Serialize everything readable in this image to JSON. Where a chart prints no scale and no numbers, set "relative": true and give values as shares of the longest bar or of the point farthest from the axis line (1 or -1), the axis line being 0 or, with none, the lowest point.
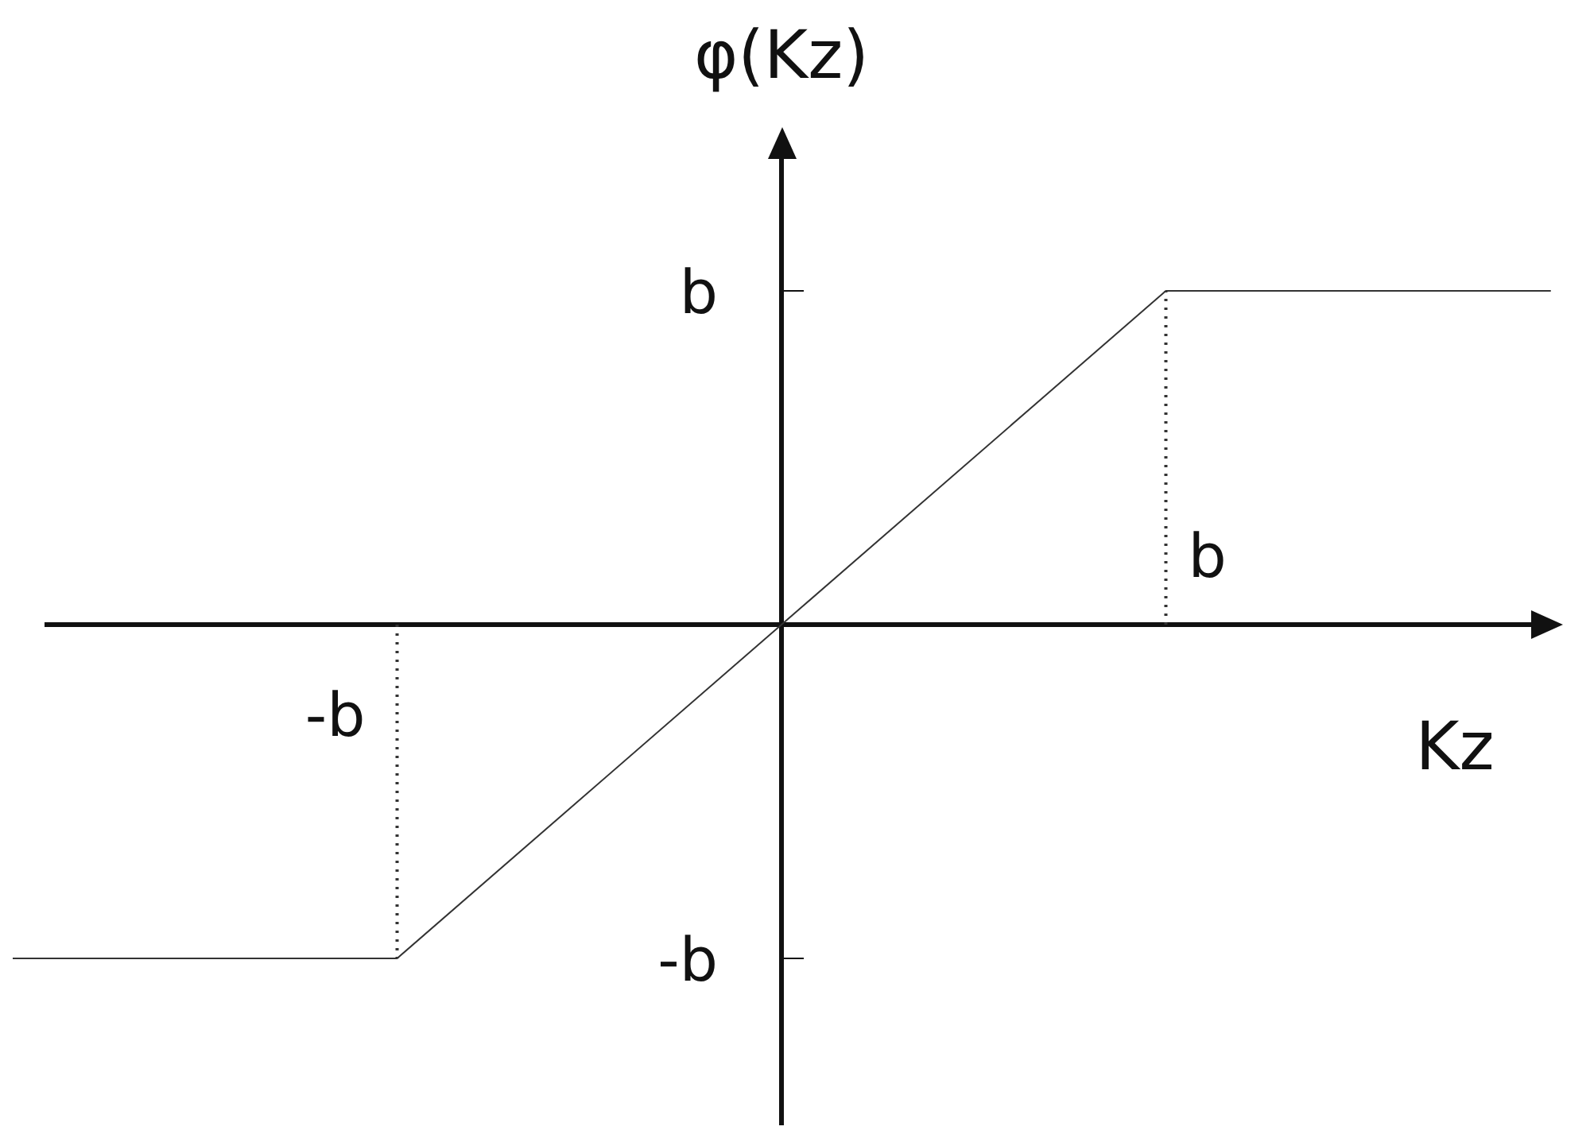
{
  "chart_data": {
    "type": "line",
    "xlabel": "Kz",
    "ylabel": "φ(Kz)",
    "relative": true,
    "categories": [
      null,
      null,
      null,
      null,
      null
    ],
    "annotations": [
      "b",
      "-b",
      "b",
      "-b"
    ],
    "marker": "none",
    "series": [
      {
        "values": [
          -1,
          -1,
          0,
          1,
          1
        ],
        "color": "#333333",
        "line_style": "solid"
      }
    ]
  }
}
